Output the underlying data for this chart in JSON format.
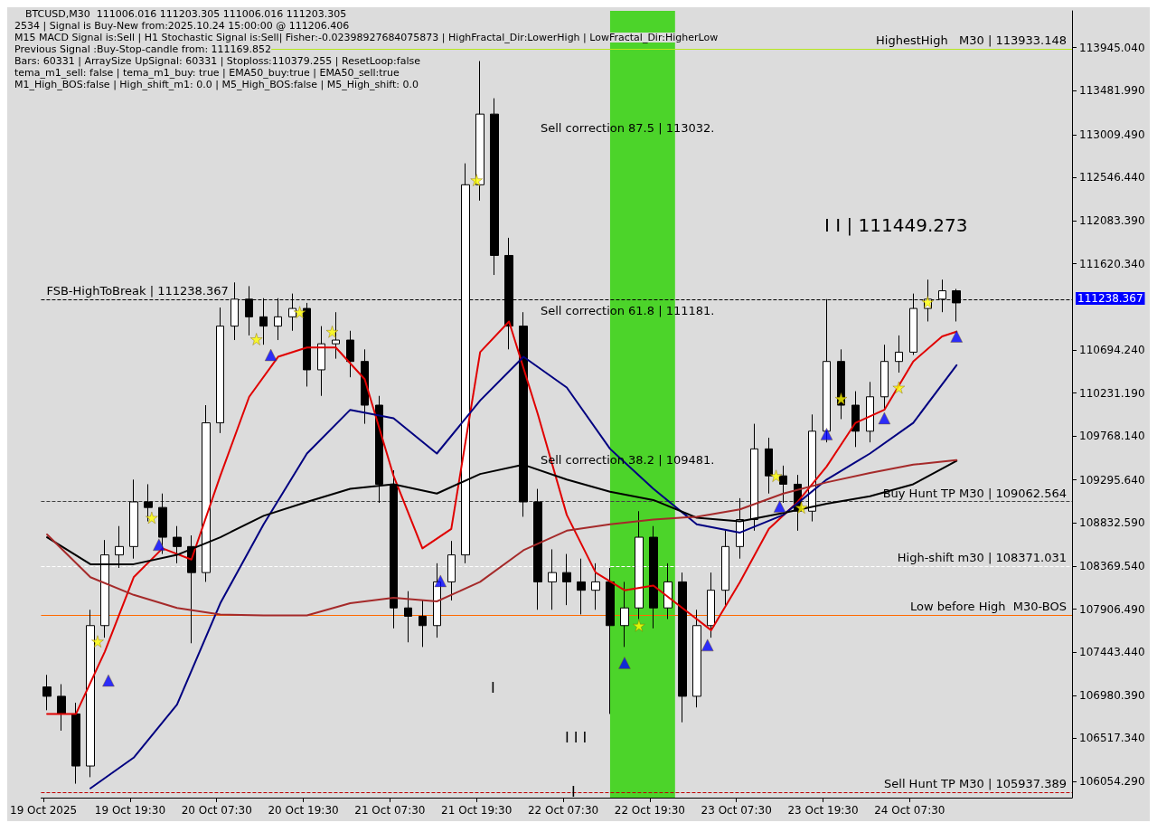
{
  "chart_data": {
    "type": "candlestick",
    "title": "BTCUSD,M30  111006.016 111203.305 111006.016 111203.305",
    "x": [
      "2025-10-19T08:00",
      "2025-10-19T10:00",
      "2025-10-19T12:00",
      "2025-10-19T14:00",
      "2025-10-19T16:00",
      "2025-10-19T18:00",
      "2025-10-19T20:00",
      "2025-10-19T22:00",
      "2025-10-20T00:00",
      "2025-10-20T02:00",
      "2025-10-20T04:00",
      "2025-10-20T06:00",
      "2025-10-20T08:00",
      "2025-10-20T10:00",
      "2025-10-20T12:00",
      "2025-10-20T14:00",
      "2025-10-20T16:00",
      "2025-10-20T18:00",
      "2025-10-20T20:00",
      "2025-10-20T22:00",
      "2025-10-21T00:00",
      "2025-10-21T02:00",
      "2025-10-21T04:00",
      "2025-10-21T06:00",
      "2025-10-21T08:00",
      "2025-10-21T10:00",
      "2025-10-21T12:00",
      "2025-10-21T14:00",
      "2025-10-21T16:00",
      "2025-10-21T18:00",
      "2025-10-21T20:00",
      "2025-10-21T22:00",
      "2025-10-22T00:00",
      "2025-10-22T02:00",
      "2025-10-22T04:00",
      "2025-10-22T06:00",
      "2025-10-22T08:00",
      "2025-10-22T10:00",
      "2025-10-22T12:00",
      "2025-10-22T14:00",
      "2025-10-22T16:00",
      "2025-10-22T18:00",
      "2025-10-22T20:00",
      "2025-10-22T22:00",
      "2025-10-23T00:00",
      "2025-10-23T02:00",
      "2025-10-23T04:00",
      "2025-10-23T06:00",
      "2025-10-23T08:00",
      "2025-10-23T10:00",
      "2025-10-23T12:00",
      "2025-10-23T14:00",
      "2025-10-23T16:00",
      "2025-10-23T18:00",
      "2025-10-23T20:00",
      "2025-10-23T22:00",
      "2025-10-24T00:00",
      "2025-10-24T02:00",
      "2025-10-24T04:00",
      "2025-10-24T06:00",
      "2025-10-24T08:00",
      "2025-10-24T10:00",
      "2025-10-24T12:00",
      "2025-10-24T14:00"
    ],
    "ohlc": [
      [
        107070,
        107200,
        106820,
        106970
      ],
      [
        106970,
        107100,
        106600,
        106780
      ],
      [
        106780,
        106900,
        106030,
        106220
      ],
      [
        106220,
        107900,
        106100,
        107730
      ],
      [
        107730,
        108650,
        107600,
        108490
      ],
      [
        108490,
        108800,
        108350,
        108580
      ],
      [
        108580,
        109300,
        108450,
        109060
      ],
      [
        109060,
        109250,
        108850,
        109000
      ],
      [
        109000,
        109150,
        108500,
        108680
      ],
      [
        108680,
        108800,
        108400,
        108580
      ],
      [
        108580,
        108700,
        107540,
        108300
      ],
      [
        108300,
        110100,
        108200,
        109910
      ],
      [
        109910,
        111150,
        109800,
        110950
      ],
      [
        110950,
        111420,
        110800,
        111240
      ],
      [
        111240,
        111380,
        110850,
        111050
      ],
      [
        111050,
        111250,
        110750,
        110950
      ],
      [
        110950,
        111250,
        110800,
        111050
      ],
      [
        111050,
        111300,
        110900,
        111140
      ],
      [
        111140,
        111200,
        110300,
        110480
      ],
      [
        110480,
        110950,
        110200,
        110760
      ],
      [
        110760,
        111100,
        110600,
        110800
      ],
      [
        110800,
        110900,
        110400,
        110570
      ],
      [
        110570,
        110700,
        109900,
        110100
      ],
      [
        110100,
        110200,
        109050,
        109250
      ],
      [
        109250,
        109400,
        107700,
        107920
      ],
      [
        107920,
        108100,
        107550,
        107830
      ],
      [
        107830,
        108000,
        107500,
        107730
      ],
      [
        107730,
        108400,
        107600,
        108200
      ],
      [
        108200,
        108640,
        108000,
        108490
      ],
      [
        108490,
        112700,
        108400,
        112470
      ],
      [
        112470,
        113800,
        112300,
        113230
      ],
      [
        113230,
        113400,
        111500,
        111710
      ],
      [
        111710,
        111900,
        110700,
        110950
      ],
      [
        110950,
        111100,
        108900,
        109060
      ],
      [
        109060,
        109200,
        107900,
        108200
      ],
      [
        108200,
        108550,
        107900,
        108300
      ],
      [
        108300,
        108500,
        107950,
        108200
      ],
      [
        108200,
        108450,
        107850,
        108110
      ],
      [
        108110,
        108400,
        107900,
        108200
      ],
      [
        108200,
        108350,
        106780,
        107730
      ],
      [
        107730,
        108200,
        107500,
        107920
      ],
      [
        107920,
        108960,
        107800,
        108680
      ],
      [
        108680,
        108800,
        107700,
        107920
      ],
      [
        107920,
        108400,
        107800,
        108200
      ],
      [
        108200,
        108300,
        106690,
        106970
      ],
      [
        106970,
        107900,
        106850,
        107730
      ],
      [
        107730,
        108300,
        107600,
        108110
      ],
      [
        108110,
        108750,
        107950,
        108580
      ],
      [
        108580,
        109100,
        108450,
        108870
      ],
      [
        108870,
        109900,
        108750,
        109630
      ],
      [
        109630,
        109750,
        109150,
        109340
      ],
      [
        109340,
        109450,
        109050,
        109250
      ],
      [
        109250,
        109350,
        108750,
        108960
      ],
      [
        108960,
        110000,
        108850,
        109820
      ],
      [
        109820,
        111240,
        109700,
        110570
      ],
      [
        110570,
        110700,
        109950,
        110100
      ],
      [
        110100,
        110250,
        109650,
        109820
      ],
      [
        109820,
        110350,
        109700,
        110190
      ],
      [
        110190,
        110750,
        110050,
        110570
      ],
      [
        110570,
        110850,
        110450,
        110670
      ],
      [
        110670,
        111300,
        110640,
        111140
      ],
      [
        111140,
        111450,
        111000,
        111240
      ],
      [
        111240,
        111450,
        111100,
        111330
      ],
      [
        111330,
        111350,
        111000,
        111200
      ]
    ],
    "series": [
      {
        "type": "line",
        "color": "#e00000",
        "x": [
          "2025-10-19T08:00",
          "2025-10-19T12:00",
          "2025-10-19T16:00",
          "2025-10-19T20:00",
          "2025-10-20T00:00",
          "2025-10-20T04:00",
          "2025-10-20T08:00",
          "2025-10-20T12:00",
          "2025-10-20T16:00",
          "2025-10-20T20:00",
          "2025-10-21T00:00",
          "2025-10-21T04:00",
          "2025-10-21T08:00",
          "2025-10-21T12:00",
          "2025-10-21T16:00",
          "2025-10-21T20:00",
          "2025-10-22T00:00",
          "2025-10-22T04:00",
          "2025-10-22T08:00",
          "2025-10-22T12:00",
          "2025-10-22T16:00",
          "2025-10-22T20:00",
          "2025-10-23T00:00",
          "2025-10-23T04:00",
          "2025-10-23T08:00",
          "2025-10-23T12:00",
          "2025-10-23T16:00",
          "2025-10-23T20:00",
          "2025-10-24T00:00",
          "2025-10-24T04:00",
          "2025-10-24T08:00",
          "2025-10-24T12:00",
          "2025-10-24T14:00"
        ],
        "values": [
          106780,
          106780,
          107450,
          108250,
          108560,
          108440,
          109340,
          110190,
          110620,
          110720,
          110720,
          110380,
          109340,
          108560,
          108770,
          110670,
          111000,
          110000,
          108920,
          108300,
          108110,
          108160,
          107920,
          107680,
          108200,
          108770,
          109060,
          109440,
          109910,
          110050,
          110570,
          110840,
          110890
        ]
      },
      {
        "type": "line",
        "color": "#000080",
        "x": [
          "2025-10-19T14:00",
          "2025-10-19T20:00",
          "2025-10-20T02:00",
          "2025-10-20T08:00",
          "2025-10-20T14:00",
          "2025-10-20T20:00",
          "2025-10-21T02:00",
          "2025-10-21T08:00",
          "2025-10-21T14:00",
          "2025-10-21T20:00",
          "2025-10-22T02:00",
          "2025-10-22T08:00",
          "2025-10-22T14:00",
          "2025-10-22T20:00",
          "2025-10-23T02:00",
          "2025-10-23T08:00",
          "2025-10-23T14:00",
          "2025-10-23T20:00",
          "2025-10-24T02:00",
          "2025-10-24T08:00",
          "2025-10-24T14:00"
        ],
        "values": [
          105980,
          106310,
          106880,
          107970,
          108820,
          109580,
          110050,
          109960,
          109580,
          110150,
          110620,
          110290,
          109630,
          109200,
          108820,
          108730,
          108920,
          109300,
          109580,
          109910,
          110530
        ]
      },
      {
        "type": "line",
        "color": "#000000",
        "x": [
          "2025-10-19T08:00",
          "2025-10-19T14:00",
          "2025-10-19T20:00",
          "2025-10-20T02:00",
          "2025-10-20T08:00",
          "2025-10-20T14:00",
          "2025-10-20T20:00",
          "2025-10-21T02:00",
          "2025-10-21T08:00",
          "2025-10-21T14:00",
          "2025-10-21T20:00",
          "2025-10-22T02:00",
          "2025-10-22T08:00",
          "2025-10-22T14:00",
          "2025-10-22T20:00",
          "2025-10-23T02:00",
          "2025-10-23T08:00",
          "2025-10-23T14:00",
          "2025-10-23T20:00",
          "2025-10-24T02:00",
          "2025-10-24T08:00",
          "2025-10-24T14:00"
        ],
        "values": [
          108680,
          108390,
          108390,
          108490,
          108680,
          108910,
          109060,
          109200,
          109250,
          109150,
          109360,
          109460,
          109300,
          109170,
          109080,
          108890,
          108850,
          108940,
          109040,
          109120,
          109250,
          109500
        ]
      },
      {
        "type": "line",
        "color": "#a52a2a",
        "x": [
          "2025-10-19T08:00",
          "2025-10-19T14:00",
          "2025-10-19T20:00",
          "2025-10-20T02:00",
          "2025-10-20T08:00",
          "2025-10-20T14:00",
          "2025-10-20T20:00",
          "2025-10-21T02:00",
          "2025-10-21T08:00",
          "2025-10-21T14:00",
          "2025-10-21T20:00",
          "2025-10-22T02:00",
          "2025-10-22T08:00",
          "2025-10-22T14:00",
          "2025-10-22T20:00",
          "2025-10-23T02:00",
          "2025-10-23T08:00",
          "2025-10-23T14:00",
          "2025-10-23T20:00",
          "2025-10-24T02:00",
          "2025-10-24T08:00",
          "2025-10-24T14:00"
        ],
        "values": [
          108710,
          108250,
          108060,
          107920,
          107850,
          107840,
          107840,
          107970,
          108030,
          107990,
          108200,
          108540,
          108750,
          108820,
          108870,
          108900,
          108980,
          109150,
          109270,
          109370,
          109460,
          109510
        ]
      },
      {
        "type": "scatter",
        "marker": "star",
        "color": "#ffff00",
        "x": [
          "2025-10-19T15:00",
          "2025-10-19T22:30",
          "2025-10-20T13:00",
          "2025-10-20T19:00",
          "2025-10-20T23:30",
          "2025-10-21T19:30",
          "2025-10-22T18:00",
          "2025-10-23T13:00",
          "2025-10-23T16:30",
          "2025-10-23T22:00",
          "2025-10-24T06:00",
          "2025-10-24T10:00"
        ],
        "values": [
          107560,
          108890,
          110810,
          111100,
          110890,
          112520,
          107730,
          109340,
          109000,
          110170,
          110290,
          111210
        ]
      },
      {
        "type": "scatter",
        "marker": "triangle",
        "color": "#0000ff",
        "x": [
          "2025-10-19T16:30",
          "2025-10-19T23:30",
          "2025-10-20T15:00",
          "2025-10-21T14:30",
          "2025-10-22T16:00",
          "2025-10-23T03:30",
          "2025-10-23T13:30",
          "2025-10-23T20:00",
          "2025-10-24T04:00",
          "2025-10-24T14:00"
        ],
        "values": [
          107140,
          108600,
          110640,
          108210,
          107330,
          107520,
          109010,
          109790,
          109960,
          110840
        ]
      }
    ],
    "xlim": [
      "2025-10-19T07:10",
      "2025-10-25T06:00"
    ],
    "xticks": [
      {
        "value": "2025-10-19T07:30",
        "label": "19 Oct 2025"
      },
      {
        "value": "2025-10-19T19:30",
        "label": "19 Oct 19:30"
      },
      {
        "value": "2025-10-20T07:30",
        "label": "20 Oct 07:30"
      },
      {
        "value": "2025-10-20T19:30",
        "label": "20 Oct 19:30"
      },
      {
        "value": "2025-10-21T07:30",
        "label": "21 Oct 07:30"
      },
      {
        "value": "2025-10-21T19:30",
        "label": "21 Oct 19:30"
      },
      {
        "value": "2025-10-22T07:30",
        "label": "22 Oct 07:30"
      },
      {
        "value": "2025-10-22T19:30",
        "label": "22 Oct 19:30"
      },
      {
        "value": "2025-10-23T07:30",
        "label": "23 Oct 07:30"
      },
      {
        "value": "2025-10-23T19:30",
        "label": "23 Oct 19:30"
      },
      {
        "value": "2025-10-24T07:30",
        "label": "24 Oct 07:30"
      }
    ],
    "ylim": [
      105880,
      114340
    ],
    "yticks": [
      {
        "value": 106054.29,
        "label": "106054.290"
      },
      {
        "value": 106517.34,
        "label": "106517.340"
      },
      {
        "value": 106980.39,
        "label": "106980.390"
      },
      {
        "value": 107443.44,
        "label": "107443.440"
      },
      {
        "value": 107906.49,
        "label": "107906.490"
      },
      {
        "value": 108369.54,
        "label": "108369.540"
      },
      {
        "value": 108832.59,
        "label": "108832.590"
      },
      {
        "value": 109295.64,
        "label": "109295.640"
      },
      {
        "value": 109768.14,
        "label": "109768.140"
      },
      {
        "value": 110231.19,
        "label": "110231.190"
      },
      {
        "value": 110694.24,
        "label": "110694.240"
      },
      {
        "value": 111620.34,
        "label": "111620.340"
      },
      {
        "value": 112083.39,
        "label": "112083.390"
      },
      {
        "value": 112546.44,
        "label": "112546.440"
      },
      {
        "value": 113009.49,
        "label": "113009.490"
      },
      {
        "value": 113481.99,
        "label": "113481.990"
      },
      {
        "value": 113945.04,
        "label": "113945.040"
      }
    ],
    "ref_lines": [
      {
        "axis": "y",
        "value": 113933.148,
        "label": "HighestHigh   M30 | 113933.148",
        "color": "#b5e61d",
        "line_style": "solid"
      },
      {
        "axis": "y",
        "value": 111238.367,
        "label": "FSB-HighToBreak | 111238.367",
        "color": "#000000",
        "line_style": "dashed"
      },
      {
        "axis": "y",
        "value": 109062.564,
        "label": "Buy Hunt TP M30 | 109062.564",
        "color": "#404040",
        "line_style": "dashed"
      },
      {
        "axis": "y",
        "value": 108371.031,
        "label": "High-shift m30 | 108371.031",
        "color": "#ffffff",
        "line_style": "dashed"
      },
      {
        "axis": "y",
        "value": 107845,
        "label": "Low before High  M30-BOS",
        "color": "#ff6a00",
        "line_style": "solid"
      },
      {
        "axis": "y",
        "value": 105937.389,
        "label": "Sell Hunt TP M30 | 105937.389",
        "color": "#c00000",
        "line_style": "dashed"
      }
    ],
    "bands": [
      {
        "axis": "x",
        "from": "2025-10-22T14:00",
        "to": "2025-10-22T23:00",
        "color": "#4cd42a"
      }
    ],
    "annotations": [
      "2534 | Signal is Buy-New from:2025.10.24 15:00:00 @ 111206.406",
      "M15 MACD Signal is:Sell | H1 Stochastic Signal is:Sell| Fisher:-0.02398927684075873 | HighFractal_Dir:LowerHigh | LowFractal_Dir:HigherLow",
      "Previous Signal :Buy-Stop-candle from: 111169.852",
      "Bars: 60331 | ArraySize UpSignal: 60331 | Stoploss:110379.255 | ResetLoop:false",
      "tema_m1_sell: false | tema_m1_buy: true | EMA50_buy:true | EMA50_sell:true",
      "M1_High_BOS:false | High_shift_m1: 0.0 | M5_High_BOS:false | M5_High_shift: 0.0",
      "Sell correction 87.5 | 113032.",
      "Sell correction 61.8 | 111181.",
      "Sell correction 38.2 | 109481.",
      "I I | 111449.273",
      "I",
      "I I I",
      "I",
      "111238.367"
    ]
  }
}
